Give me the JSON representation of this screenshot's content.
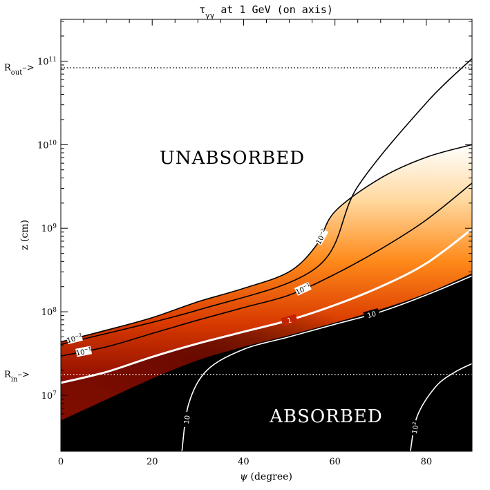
{
  "chart_data": {
    "type": "contour",
    "title_prefix": "τ",
    "title_subscript": "γγ",
    "title_suffix": " at 1 GeV (on axis)",
    "xlabel_symbol": "ψ",
    "xlabel_text": " (degree)",
    "ylabel": "z (cm)",
    "xlim": [
      0,
      90
    ],
    "ylim_log10": [
      6.33,
      11.5
    ],
    "y_scale": "log",
    "x_ticks": [
      0,
      20,
      40,
      60,
      80
    ],
    "y_tick_exponents": [
      7,
      8,
      9,
      10,
      11
    ],
    "y_tick_base": "10",
    "regions": {
      "unabsorbed": "UNABSORBED",
      "absorbed": "ABSORBED"
    },
    "reference_lines": [
      {
        "name": "R_out",
        "label_main": "R",
        "label_sub": "out",
        "label_arrow": "–>",
        "log10_z": 10.92,
        "color": "#000000"
      },
      {
        "name": "R_in",
        "label_main": "R",
        "label_sub": "in",
        "label_arrow": "–>",
        "log10_z": 7.25,
        "color": "#ffffff"
      }
    ],
    "contours": [
      {
        "level": "1e-3",
        "label": "",
        "color": "#000000",
        "points": [
          [
            0,
            7.61
          ],
          [
            30,
            8.02
          ],
          [
            56,
            8.53
          ],
          [
            65,
            9.5
          ],
          [
            80,
            10.5
          ],
          [
            90,
            11.03
          ]
        ]
      },
      {
        "level": "1e-2",
        "label_base": "10",
        "label_exp": "−2",
        "color": "#000000",
        "points": [
          [
            0,
            7.64
          ],
          [
            10,
            7.78
          ],
          [
            20,
            7.93
          ],
          [
            30,
            8.12
          ],
          [
            40,
            8.28
          ],
          [
            50,
            8.48
          ],
          [
            56,
            8.8
          ],
          [
            60,
            9.2
          ],
          [
            70,
            9.6
          ],
          [
            80,
            9.85
          ],
          [
            90,
            10.0
          ]
        ]
      },
      {
        "level": "1e-1",
        "label_base": "10",
        "label_exp": "−1",
        "color": "#000000",
        "points": [
          [
            0,
            7.47
          ],
          [
            10,
            7.58
          ],
          [
            20,
            7.74
          ],
          [
            30,
            7.9
          ],
          [
            40,
            8.05
          ],
          [
            50,
            8.2
          ],
          [
            60,
            8.45
          ],
          [
            70,
            8.75
          ],
          [
            80,
            9.1
          ],
          [
            90,
            9.54
          ]
        ]
      },
      {
        "level": "1",
        "label_base": "1",
        "label_exp": "",
        "color": "#ffffff",
        "points": [
          [
            0,
            7.15
          ],
          [
            10,
            7.28
          ],
          [
            20,
            7.46
          ],
          [
            30,
            7.62
          ],
          [
            40,
            7.76
          ],
          [
            50,
            7.9
          ],
          [
            60,
            8.08
          ],
          [
            70,
            8.3
          ],
          [
            80,
            8.58
          ],
          [
            90,
            8.99
          ]
        ]
      },
      {
        "level": "10",
        "label_base": "10",
        "label_exp": "",
        "color": "#ffffff",
        "points": [
          [
            26.5,
            6.33
          ],
          [
            28,
            6.9
          ],
          [
            32,
            7.3
          ],
          [
            40,
            7.55
          ],
          [
            50,
            7.7
          ],
          [
            60,
            7.85
          ],
          [
            70,
            8.0
          ],
          [
            80,
            8.2
          ],
          [
            90,
            8.43
          ]
        ]
      },
      {
        "level": "1e2",
        "label_base": "10",
        "label_exp": "2",
        "color": "#ffffff",
        "points": [
          [
            76.5,
            6.33
          ],
          [
            78,
            6.75
          ],
          [
            82,
            7.1
          ],
          [
            86,
            7.27
          ],
          [
            90,
            7.38
          ]
        ]
      }
    ]
  }
}
